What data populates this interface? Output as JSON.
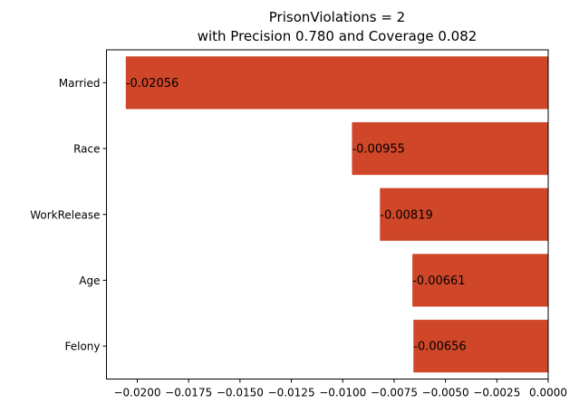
{
  "chart_data": {
    "type": "bar",
    "orientation": "horizontal",
    "title_line1": "PrisonViolations = 2",
    "title_line2": "with Precision 0.780 and Coverage 0.082",
    "xlabel": "",
    "ylabel": "",
    "categories": [
      "Married",
      "Race",
      "WorkRelease",
      "Age",
      "Felony"
    ],
    "values": [
      -0.02056,
      -0.00955,
      -0.00819,
      -0.00661,
      -0.00656
    ],
    "data_labels": [
      "-0.02056",
      "-0.00955",
      "-0.00819",
      "-0.00661",
      "-0.00656"
    ],
    "xlim": [
      -0.0215,
      0.0
    ],
    "xticks": [
      -0.02,
      -0.0175,
      -0.015,
      -0.0125,
      -0.01,
      -0.0075,
      -0.005,
      -0.0025,
      0.0
    ],
    "xtick_labels": [
      "−0.0200",
      "−0.0175",
      "−0.0150",
      "−0.0125",
      "−0.0100",
      "−0.0075",
      "−0.0050",
      "−0.0025",
      "0.0000"
    ],
    "bar_color": "#cf4629",
    "grid": false,
    "legend": "none"
  }
}
